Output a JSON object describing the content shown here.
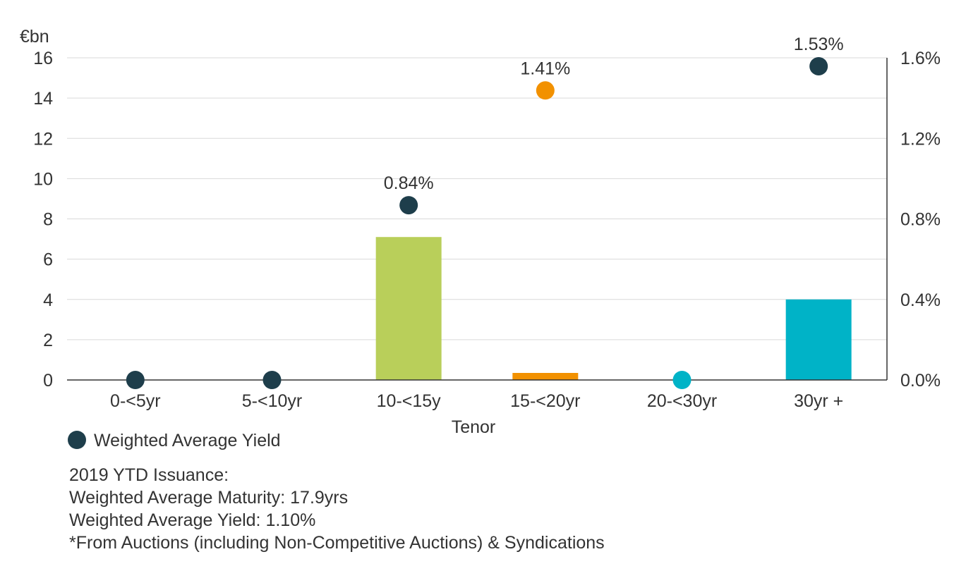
{
  "chart_data": {
    "type": "bar",
    "categories": [
      "0-<5yr",
      "5-<10yr",
      "10-<15y",
      "15-<20yr",
      "20-<30yr",
      "30yr +"
    ],
    "bar_values": [
      0,
      0,
      7.1,
      0.35,
      0,
      4.0
    ],
    "bar_colors": [
      "#b9cf5a",
      "#b9cf5a",
      "#b9cf5a",
      "#f29100",
      "#00b3c7",
      "#00b3c7"
    ],
    "yield_values": [
      0.0,
      0.0,
      0.84,
      1.41,
      0.0,
      1.53
    ],
    "yield_labels": [
      "",
      "",
      "0.84%",
      "1.41%",
      "",
      "1.53%"
    ],
    "yield_colors": [
      "#1e3e4b",
      "#1e3e4b",
      "#1e3e4b",
      "#f29100",
      "#00b3c7",
      "#1e3e4b"
    ],
    "ylabel": "€bn",
    "xlabel": "Tenor",
    "ylim": [
      0,
      16
    ],
    "y_ticks": [
      "0",
      "2",
      "4",
      "6",
      "8",
      "10",
      "12",
      "14",
      "16"
    ],
    "y2lim": [
      0,
      1.6
    ],
    "y2_ticks": [
      "0.0%",
      "0.4%",
      "0.8%",
      "1.2%",
      "1.6%"
    ],
    "grid": true,
    "legend": {
      "label": "Weighted Average Yield",
      "color": "#1e3e4b",
      "position": "bottom-left"
    }
  },
  "notes": {
    "line1": "2019 YTD Issuance:",
    "line2": "Weighted Average Maturity: 17.9yrs",
    "line3": "Weighted Average Yield: 1.10%",
    "line4": "*From Auctions (including Non-Competitive Auctions) & Syndications"
  }
}
